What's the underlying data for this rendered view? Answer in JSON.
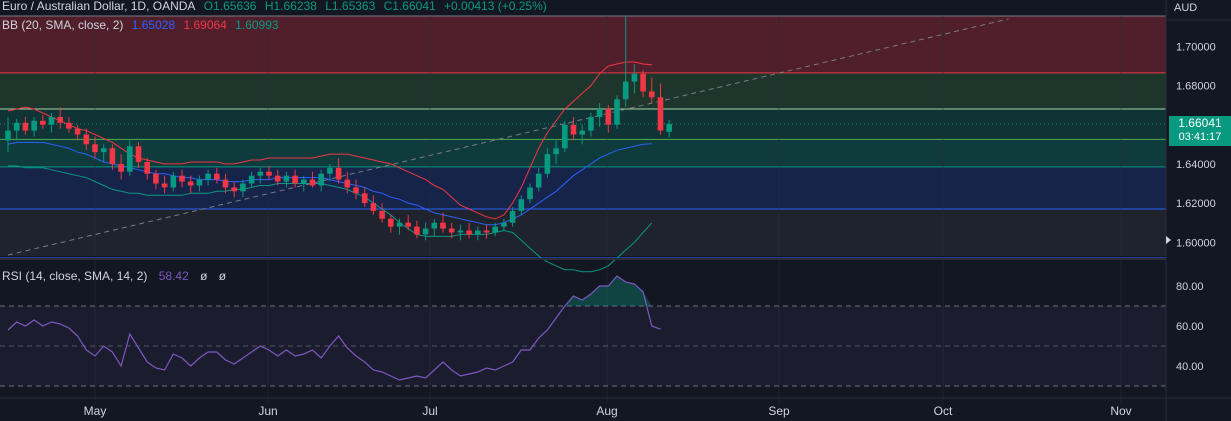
{
  "header": {
    "symbol": "Euro / Australian Dollar, 1D, OANDA",
    "open": "O1.65636",
    "high": "H1.66238",
    "low": "L1.65363",
    "close": "C1.66041",
    "change": "+0.00413 (+0.25%)"
  },
  "bb_legend": {
    "label": "BB (20, SMA, close, 2)",
    "basis": "1.65028",
    "upper": "1.69064",
    "lower": "1.60993",
    "colors": {
      "basis": "#2962ff",
      "upper": "#f23645",
      "lower": "#089981"
    }
  },
  "rsi_legend": {
    "label": "RSI (14, close, SMA, 14, 2)",
    "value": "58.42",
    "extra1": "ø",
    "extra2": "ø",
    "color": "#7e57c2"
  },
  "price_axis": {
    "currency": "AUD",
    "ticks": [
      "1.70000",
      "1.68000",
      "1.66000",
      "1.64000",
      "1.62000",
      "1.60000"
    ],
    "current_price": "1.66041",
    "countdown": "03:41:17"
  },
  "rsi_axis": {
    "ticks": [
      "80.00",
      "60.00",
      "40.00"
    ]
  },
  "time_axis": {
    "ticks": [
      "May",
      "Jun",
      "Jul",
      "Aug",
      "Sep",
      "Oct",
      "Nov"
    ]
  },
  "colors": {
    "up": "#089981",
    "down": "#f23645",
    "bg": "#131722"
  },
  "chart_data": [
    {
      "type": "candlestick",
      "ylim": [
        1.593,
        1.7155
      ],
      "zones": [
        {
          "from": 1.6865,
          "to": 1.7155,
          "color": "#f23645",
          "opacity": 0.28
        },
        {
          "from": 1.668,
          "to": 1.6865,
          "color": "#4caf50",
          "opacity": 0.2
        },
        {
          "from": 1.6525,
          "to": 1.668,
          "color": "#089981",
          "opacity": 0.22
        },
        {
          "from": 1.6385,
          "to": 1.6525,
          "color": "#089981",
          "opacity": 0.28
        },
        {
          "from": 1.617,
          "to": 1.6385,
          "color": "#2962ff",
          "opacity": 0.18
        },
        {
          "from": 1.593,
          "to": 1.617,
          "color": "#787b86",
          "opacity": 0.12
        }
      ],
      "levels": [
        {
          "y": 1.7155,
          "color": "#787b86"
        },
        {
          "y": 1.6865,
          "color": "#f23645"
        },
        {
          "y": 1.668,
          "color": "#a5d6a7"
        },
        {
          "y": 1.6525,
          "color": "#4caf50"
        },
        {
          "y": 1.6385,
          "color": "#089981"
        },
        {
          "y": 1.617,
          "color": "#2962ff"
        },
        {
          "y": 1.592,
          "color": "#2962ff"
        }
      ],
      "candles": [
        [
          1.652,
          1.664,
          1.646,
          1.657
        ],
        [
          1.657,
          1.663,
          1.652,
          1.661
        ],
        [
          1.661,
          1.664,
          1.655,
          1.657
        ],
        [
          1.657,
          1.664,
          1.654,
          1.662
        ],
        [
          1.662,
          1.665,
          1.658,
          1.66
        ],
        [
          1.66,
          1.666,
          1.656,
          1.664
        ],
        [
          1.664,
          1.669,
          1.658,
          1.661
        ],
        [
          1.661,
          1.664,
          1.656,
          1.658
        ],
        [
          1.658,
          1.66,
          1.652,
          1.655
        ],
        [
          1.655,
          1.658,
          1.647,
          1.65
        ],
        [
          1.65,
          1.654,
          1.643,
          1.646
        ],
        [
          1.646,
          1.65,
          1.641,
          1.648
        ],
        [
          1.648,
          1.65,
          1.637,
          1.64
        ],
        [
          1.64,
          1.645,
          1.632,
          1.636
        ],
        [
          1.636,
          1.652,
          1.634,
          1.649
        ],
        [
          1.649,
          1.651,
          1.638,
          1.641
        ],
        [
          1.641,
          1.643,
          1.632,
          1.635
        ],
        [
          1.635,
          1.637,
          1.627,
          1.63
        ],
        [
          1.63,
          1.634,
          1.625,
          1.628
        ],
        [
          1.628,
          1.636,
          1.626,
          1.634
        ],
        [
          1.634,
          1.637,
          1.628,
          1.631
        ],
        [
          1.631,
          1.634,
          1.625,
          1.629
        ],
        [
          1.629,
          1.634,
          1.626,
          1.632
        ],
        [
          1.632,
          1.637,
          1.629,
          1.635
        ],
        [
          1.635,
          1.638,
          1.63,
          1.632
        ],
        [
          1.632,
          1.635,
          1.625,
          1.628
        ],
        [
          1.628,
          1.631,
          1.623,
          1.626
        ],
        [
          1.626,
          1.632,
          1.623,
          1.63
        ],
        [
          1.63,
          1.636,
          1.628,
          1.634
        ],
        [
          1.634,
          1.638,
          1.63,
          1.636
        ],
        [
          1.636,
          1.639,
          1.632,
          1.634
        ],
        [
          1.634,
          1.637,
          1.629,
          1.631
        ],
        [
          1.631,
          1.636,
          1.628,
          1.634
        ],
        [
          1.634,
          1.637,
          1.628,
          1.63
        ],
        [
          1.63,
          1.634,
          1.626,
          1.632
        ],
        [
          1.632,
          1.636,
          1.628,
          1.629
        ],
        [
          1.629,
          1.637,
          1.626,
          1.635
        ],
        [
          1.635,
          1.64,
          1.631,
          1.638
        ],
        [
          1.638,
          1.643,
          1.63,
          1.632
        ],
        [
          1.632,
          1.636,
          1.625,
          1.628
        ],
        [
          1.628,
          1.632,
          1.622,
          1.625
        ],
        [
          1.625,
          1.628,
          1.618,
          1.62
        ],
        [
          1.62,
          1.624,
          1.614,
          1.616
        ],
        [
          1.616,
          1.62,
          1.61,
          1.612
        ],
        [
          1.612,
          1.614,
          1.605,
          1.608
        ],
        [
          1.608,
          1.612,
          1.604,
          1.61
        ],
        [
          1.61,
          1.614,
          1.606,
          1.608
        ],
        [
          1.608,
          1.611,
          1.602,
          1.604
        ],
        [
          1.604,
          1.61,
          1.601,
          1.607
        ],
        [
          1.607,
          1.612,
          1.603,
          1.61
        ],
        [
          1.61,
          1.615,
          1.605,
          1.607
        ],
        [
          1.607,
          1.61,
          1.602,
          1.605
        ],
        [
          1.605,
          1.609,
          1.601,
          1.606
        ],
        [
          1.606,
          1.61,
          1.602,
          1.604
        ],
        [
          1.604,
          1.608,
          1.601,
          1.606
        ],
        [
          1.606,
          1.609,
          1.602,
          1.605
        ],
        [
          1.605,
          1.61,
          1.603,
          1.608
        ],
        [
          1.608,
          1.612,
          1.606,
          1.61
        ],
        [
          1.61,
          1.618,
          1.608,
          1.616
        ],
        [
          1.616,
          1.624,
          1.614,
          1.622
        ],
        [
          1.622,
          1.63,
          1.62,
          1.628
        ],
        [
          1.628,
          1.638,
          1.626,
          1.635
        ],
        [
          1.635,
          1.648,
          1.633,
          1.645
        ],
        [
          1.645,
          1.652,
          1.64,
          1.648
        ],
        [
          1.648,
          1.662,
          1.646,
          1.66
        ],
        [
          1.66,
          1.664,
          1.652,
          1.655
        ],
        [
          1.655,
          1.66,
          1.65,
          1.657
        ],
        [
          1.657,
          1.666,
          1.654,
          1.664
        ],
        [
          1.664,
          1.671,
          1.659,
          1.668
        ],
        [
          1.668,
          1.67,
          1.656,
          1.66
        ],
        [
          1.66,
          1.675,
          1.658,
          1.673
        ],
        [
          1.673,
          1.7155,
          1.669,
          1.682
        ],
        [
          1.682,
          1.691,
          1.676,
          1.686
        ],
        [
          1.686,
          1.688,
          1.674,
          1.677
        ],
        [
          1.677,
          1.684,
          1.671,
          1.674
        ],
        [
          1.674,
          1.681,
          1.655,
          1.657
        ],
        [
          1.65636,
          1.66238,
          1.65363,
          1.66041
        ]
      ],
      "bb_upper": [
        1.667,
        1.668,
        1.669,
        1.668,
        1.666,
        1.664,
        1.662,
        1.66,
        1.658,
        1.657,
        1.655,
        1.653,
        1.651,
        1.648,
        1.645,
        1.643,
        1.642,
        1.641,
        1.64,
        1.64,
        1.64,
        1.641,
        1.641,
        1.641,
        1.641,
        1.64,
        1.64,
        1.641,
        1.642,
        1.642,
        1.643,
        1.643,
        1.643,
        1.643,
        1.643,
        1.643,
        1.644,
        1.645,
        1.645,
        1.645,
        1.644,
        1.643,
        1.642,
        1.641,
        1.64,
        1.638,
        1.636,
        1.634,
        1.632,
        1.629,
        1.627,
        1.623,
        1.619,
        1.617,
        1.615,
        1.613,
        1.612,
        1.614,
        1.62,
        1.628,
        1.638,
        1.648,
        1.656,
        1.662,
        1.668,
        1.672,
        1.676,
        1.68,
        1.686,
        1.69,
        1.691,
        1.692,
        1.692,
        1.691,
        1.6906
      ],
      "bb_basis": [
        1.65,
        1.651,
        1.651,
        1.651,
        1.651,
        1.65,
        1.649,
        1.648,
        1.646,
        1.645,
        1.643,
        1.641,
        1.64,
        1.639,
        1.638,
        1.637,
        1.636,
        1.635,
        1.635,
        1.634,
        1.633,
        1.633,
        1.632,
        1.632,
        1.632,
        1.631,
        1.631,
        1.631,
        1.632,
        1.632,
        1.632,
        1.633,
        1.633,
        1.633,
        1.633,
        1.633,
        1.633,
        1.632,
        1.631,
        1.63,
        1.629,
        1.628,
        1.626,
        1.625,
        1.623,
        1.622,
        1.62,
        1.619,
        1.617,
        1.615,
        1.614,
        1.613,
        1.612,
        1.611,
        1.61,
        1.609,
        1.609,
        1.61,
        1.612,
        1.614,
        1.617,
        1.62,
        1.623,
        1.626,
        1.63,
        1.634,
        1.637,
        1.64,
        1.643,
        1.645,
        1.647,
        1.648,
        1.649,
        1.65,
        1.6503
      ],
      "bb_lower": [
        1.639,
        1.639,
        1.638,
        1.638,
        1.638,
        1.637,
        1.636,
        1.635,
        1.634,
        1.633,
        1.631,
        1.629,
        1.627,
        1.626,
        1.625,
        1.625,
        1.624,
        1.624,
        1.624,
        1.624,
        1.624,
        1.625,
        1.625,
        1.625,
        1.626,
        1.626,
        1.627,
        1.627,
        1.628,
        1.629,
        1.629,
        1.63,
        1.63,
        1.63,
        1.63,
        1.63,
        1.63,
        1.629,
        1.628,
        1.627,
        1.625,
        1.623,
        1.62,
        1.617,
        1.614,
        1.61,
        1.607,
        1.604,
        1.603,
        1.603,
        1.603,
        1.603,
        1.604,
        1.604,
        1.604,
        1.604,
        1.605,
        1.606,
        1.605,
        1.601,
        1.597,
        1.593,
        1.59,
        1.588,
        1.586,
        1.586,
        1.585,
        1.585,
        1.586,
        1.588,
        1.592,
        1.596,
        1.6,
        1.605,
        1.6099
      ],
      "trend_line": {
        "from": [
          0,
          1.5935
        ],
        "to": [
          115,
          1.714
        ]
      }
    },
    {
      "type": "line",
      "name": "RSI",
      "ylim": [
        25,
        92
      ],
      "bands": [
        70,
        50,
        30
      ],
      "values": [
        58,
        62,
        60,
        63,
        60,
        62,
        61,
        59,
        55,
        48,
        45,
        50,
        47,
        40,
        56,
        49,
        42,
        39,
        38,
        46,
        44,
        40,
        44,
        47,
        47,
        43,
        41,
        44,
        47,
        50,
        48,
        45,
        48,
        45,
        46,
        48,
        44,
        50,
        55,
        49,
        45,
        42,
        38,
        37,
        35,
        33,
        34,
        35,
        34,
        38,
        42,
        38,
        35,
        36,
        37,
        39,
        38,
        40,
        42,
        48,
        48,
        54,
        58,
        64,
        70,
        75,
        73,
        76,
        80,
        80,
        85,
        82,
        81,
        77,
        60,
        58.42
      ],
      "fill_above": 70
    }
  ]
}
